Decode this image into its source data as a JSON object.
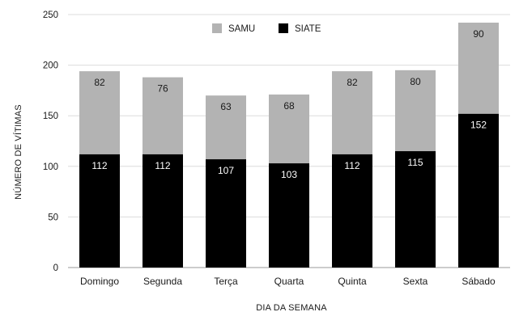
{
  "chart_data": {
    "type": "bar",
    "stacked": true,
    "categories": [
      "Domingo",
      "Segunda",
      "Terça",
      "Quarta",
      "Quinta",
      "Sexta",
      "Sábado"
    ],
    "series": [
      {
        "name": "SIATE",
        "values": [
          112,
          112,
          107,
          103,
          112,
          115,
          152
        ],
        "color": "#000000",
        "label_color": "#ffffff"
      },
      {
        "name": "SAMU",
        "values": [
          82,
          76,
          63,
          68,
          82,
          80,
          90
        ],
        "color": "#b3b3b3",
        "label_color": "#1a1a1a"
      }
    ],
    "legend_order": [
      "SAMU",
      "SIATE"
    ],
    "title": "",
    "xlabel": "DIA DA SEMANA",
    "ylabel": "NÚMERO DE VÍTIMAS",
    "ylim": [
      0,
      250
    ],
    "yticks": [
      0,
      50,
      100,
      150,
      200,
      250
    ],
    "grid": true,
    "legend_position": "top-center"
  }
}
